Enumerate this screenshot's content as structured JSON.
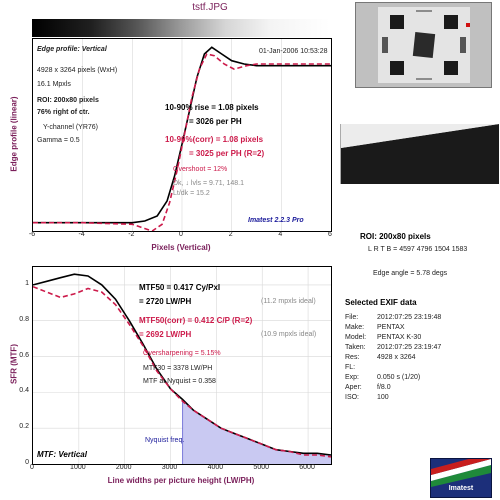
{
  "header": {
    "title": "tstf.JPG"
  },
  "edge_panel": {
    "profile_label": "Edge profile: Vertical",
    "date": "01-Jan-2006 10:53:28",
    "size": "4928 x 3264 pixels (WxH)",
    "mpxls": "16.1 Mpxls",
    "roi": "ROI: 200x80 pixels",
    "roi_pos": "76% right of ctr.",
    "channel": "Y-channel  (YR76)",
    "gamma": "Gamma = 0.5",
    "rise_1": "10-90% rise = 1.08 pixels",
    "rise_1b": "= 3026 per PH",
    "rise_2": "10-90%(corr) = 1.08 pixels",
    "rise_2b": "= 3025 per PH  (R=2)",
    "overshoot": "Overshoot = 12%",
    "dk": "Dk, ↓ lvls = 9.71, 148.1",
    "lt_dk": "Lt/dk = 15.2",
    "brand": "Imatest 2.2.3 Pro"
  },
  "mtf_panel": {
    "mtf50": "MTF50 = 0.417 Cy/Pxl",
    "mtf50b": "= 2720 LW/PH",
    "ideal1": "(11.2 mpxls ideal)",
    "mtf50c": "MTF50(corr) = 0.412 C/P  (R=2)",
    "mtf50d": "= 2692 LW/PH",
    "ideal2": "(10.9 mpxls ideal)",
    "oversharp": "Oversharpening = 5.15%",
    "mtf30": "MTF30 = 3378 LW/PH",
    "nyq": "MTF at Nyquist = 0.358",
    "nyq_label": "Nyquist freq.",
    "panel_label": "MTF: Vertical"
  },
  "right": {
    "roi_title": "ROI: 200x80 pixels",
    "lrtb": "L R T B = 4597 4796 1504 1583",
    "edge_angle": "Edge angle = 5.78 degs",
    "exif_title": "Selected EXIF data",
    "exif": [
      {
        "k": "File:",
        "v": "2012:07:25 23:19:48"
      },
      {
        "k": "Make:",
        "v": "PENTAX"
      },
      {
        "k": "Model:",
        "v": "PENTAX K-30"
      },
      {
        "k": "Taken:",
        "v": "2012:07:25 23:19:47"
      },
      {
        "k": "Res:",
        "v": "4928 x 3264"
      },
      {
        "k": "FL:",
        "v": ""
      },
      {
        "k": "Exp:",
        "v": "0.050 s  (1/20)"
      },
      {
        "k": "Aper:",
        "v": "f/8.0"
      },
      {
        "k": "ISO:",
        "v": "100"
      }
    ],
    "logo_text": "Imatest"
  },
  "chart_data": [
    {
      "type": "line",
      "xlabel": "Pixels (Vertical)",
      "ylabel": "Edge profile (linear)",
      "xlim": [
        -6,
        6
      ],
      "xticks": [
        -6,
        -4,
        -2,
        0,
        2,
        4,
        6
      ],
      "ylim": [
        0,
        1.15
      ],
      "series": [
        {
          "color": "#000000",
          "x": [
            -6,
            -4,
            -2,
            -1.5,
            -1,
            -0.6,
            -0.3,
            0,
            0.3,
            0.6,
            0.9,
            1.2,
            1.6,
            2,
            2.5,
            3,
            4,
            5,
            6
          ],
          "y": [
            0.05,
            0.05,
            0.05,
            0.06,
            0.09,
            0.18,
            0.33,
            0.52,
            0.72,
            0.92,
            1.06,
            1.1,
            1.06,
            1.02,
            1.0,
            0.99,
            0.99,
            0.99,
            0.99
          ]
        },
        {
          "color": "#cc1a4a",
          "x": [
            -6,
            -4,
            -2,
            -1.6,
            -1.2,
            -0.8,
            -0.5,
            -0.2,
            0.1,
            0.4,
            0.7,
            1.0,
            1.3,
            1.7,
            2.1,
            2.6,
            3,
            4,
            5,
            6
          ],
          "y": [
            0.05,
            0.05,
            0.04,
            0.02,
            0.0,
            0.04,
            0.17,
            0.36,
            0.58,
            0.8,
            0.97,
            1.06,
            1.05,
            1.0,
            0.97,
            0.99,
            1.0,
            1.0,
            1.0,
            1.0
          ]
        }
      ]
    },
    {
      "type": "line",
      "xlabel": "Line widths per picture height (LW/PH)",
      "ylabel": "SFR (MTF)",
      "xlim": [
        0,
        6500
      ],
      "xticks": [
        0,
        1000,
        2000,
        3000,
        4000,
        5000,
        6000
      ],
      "ylim": [
        0,
        1.1
      ],
      "yticks": [
        0,
        0.2,
        0.4,
        0.6,
        0.8,
        1
      ],
      "nyquist": 3264,
      "series": [
        {
          "color": "#000000",
          "x": [
            0,
            300,
            600,
            900,
            1200,
            1500,
            1800,
            2100,
            2400,
            2700,
            3000,
            3264,
            3500,
            3800,
            4100,
            4400,
            4700,
            5000,
            5300,
            5600,
            5900,
            6200,
            6500
          ],
          "y": [
            1.0,
            1.02,
            1.04,
            1.06,
            1.05,
            1.0,
            0.92,
            0.8,
            0.67,
            0.53,
            0.42,
            0.36,
            0.3,
            0.25,
            0.2,
            0.17,
            0.14,
            0.11,
            0.08,
            0.07,
            0.06,
            0.06,
            0.05
          ]
        },
        {
          "color": "#cc1a4a",
          "x": [
            0,
            300,
            600,
            900,
            1200,
            1500,
            1800,
            2100,
            2400,
            2700,
            3000,
            3264,
            3500,
            3800,
            4100,
            4400,
            4700,
            5000,
            5300,
            5600,
            5900,
            6200,
            6500
          ],
          "y": [
            0.99,
            0.96,
            0.93,
            0.95,
            0.98,
            0.96,
            0.89,
            0.78,
            0.66,
            0.52,
            0.42,
            0.35,
            0.3,
            0.25,
            0.2,
            0.17,
            0.14,
            0.11,
            0.08,
            0.07,
            0.05,
            0.05,
            0.04
          ]
        }
      ]
    }
  ]
}
